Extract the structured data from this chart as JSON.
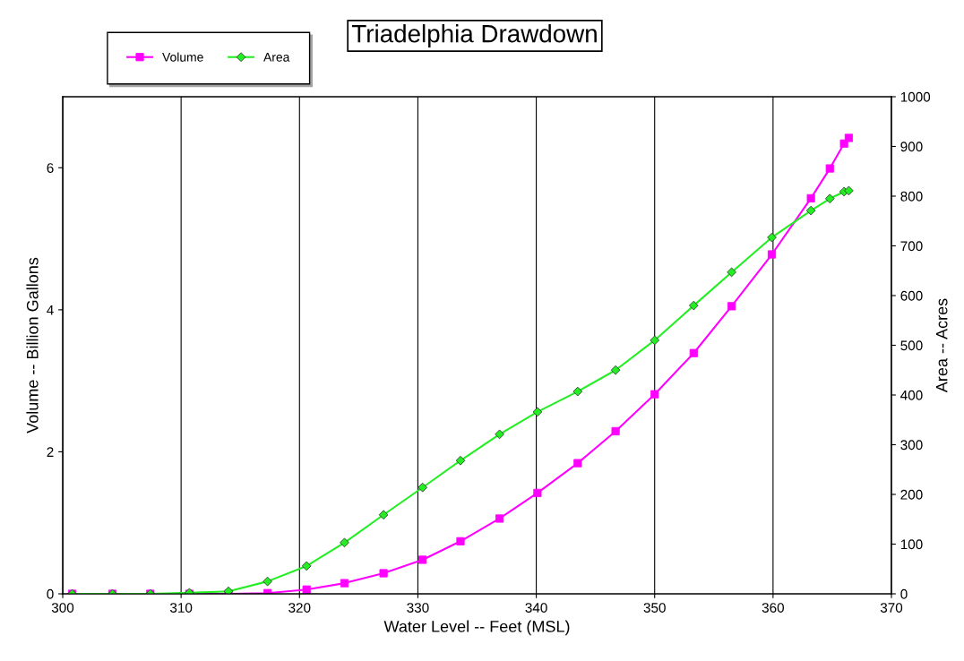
{
  "chart_data": {
    "type": "line",
    "title": "Triadelphia Drawdown",
    "xlabel": "Water Level -- Feet (MSL)",
    "ylabel": "Volume -- Billion Gallons",
    "y2label": "Area -- Acres",
    "x": [
      300.8,
      304.2,
      307.4,
      310.7,
      314.0,
      317.3,
      320.6,
      323.8,
      327.1,
      330.4,
      333.6,
      336.9,
      340.1,
      343.5,
      346.7,
      350.0,
      353.3,
      356.5,
      359.9,
      363.2,
      364.8,
      366.0,
      366.4
    ],
    "series": [
      {
        "name": "Volume",
        "color": "#ff00ff",
        "marker": "square",
        "values": [
          0,
          0,
          0,
          0,
          0,
          0.01,
          0.06,
          0.15,
          0.29,
          0.48,
          0.74,
          1.06,
          1.42,
          1.84,
          2.29,
          2.81,
          3.39,
          4.05,
          4.78,
          5.57,
          5.99,
          6.34,
          6.42
        ]
      },
      {
        "name": "Area",
        "color": "#22ee22",
        "marker": "diamond",
        "axis": "y2",
        "values": [
          0,
          0,
          0,
          2,
          5,
          25,
          56,
          103,
          159,
          214,
          268,
          321,
          366,
          407,
          450,
          510,
          580,
          647,
          717,
          771,
          795,
          809,
          811
        ]
      }
    ],
    "xlim": [
      300,
      370
    ],
    "xticks": [
      300,
      310,
      320,
      330,
      340,
      350,
      360,
      370
    ],
    "ylim": [
      0,
      7
    ],
    "yticks": [
      0,
      2,
      4,
      6
    ],
    "y2lim": [
      0,
      1000
    ],
    "y2ticks": [
      0,
      100,
      200,
      300,
      400,
      500,
      600,
      700,
      800,
      900,
      1000
    ],
    "grid": "x",
    "legend": "top left"
  }
}
